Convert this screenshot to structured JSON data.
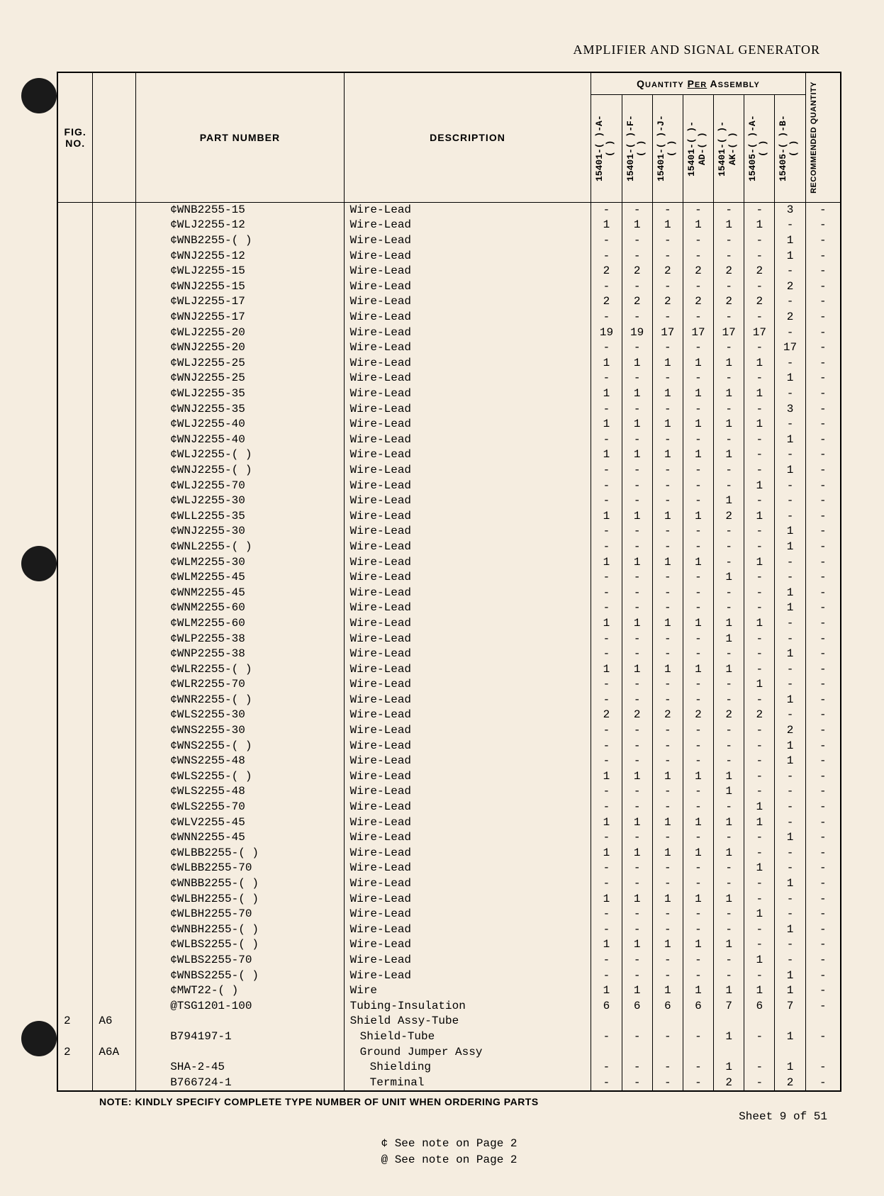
{
  "document_title": "AMPLIFIER AND SIGNAL GENERATOR",
  "headers": {
    "fig_no": "FIG. NO.",
    "part_number": "PART NUMBER",
    "description": "DESCRIPTION",
    "qty_per_assembly": "QUANTITY PER ASSEMBLY",
    "recommended_qty": "RECOMMENDED QUANTITY"
  },
  "qty_columns": [
    "15401-( )-A-( )",
    "15401-( )-F-( )",
    "15401-( )-J-( )",
    "15401-( )-AD-( )",
    "15401-( )-AK-( )",
    "15405-( )-A-( )",
    "15405-( )-B-( )"
  ],
  "rows": [
    {
      "fig": "",
      "ref": "",
      "part": "¢WNB2255-15",
      "desc": "Wire-Lead",
      "q": [
        "-",
        "-",
        "-",
        "-",
        "-",
        "-",
        "3"
      ],
      "rec": "-",
      "indent": 0
    },
    {
      "fig": "",
      "ref": "",
      "part": "¢WLJ2255-12",
      "desc": "Wire-Lead",
      "q": [
        "1",
        "1",
        "1",
        "1",
        "1",
        "1",
        "-"
      ],
      "rec": "-",
      "indent": 0
    },
    {
      "fig": "",
      "ref": "",
      "part": "¢WNB2255-( )",
      "desc": "Wire-Lead",
      "q": [
        "-",
        "-",
        "-",
        "-",
        "-",
        "-",
        "1"
      ],
      "rec": "-",
      "indent": 0
    },
    {
      "fig": "",
      "ref": "",
      "part": "¢WNJ2255-12",
      "desc": "Wire-Lead",
      "q": [
        "-",
        "-",
        "-",
        "-",
        "-",
        "-",
        "1"
      ],
      "rec": "-",
      "indent": 0
    },
    {
      "fig": "",
      "ref": "",
      "part": "¢WLJ2255-15",
      "desc": "Wire-Lead",
      "q": [
        "2",
        "2",
        "2",
        "2",
        "2",
        "2",
        "-"
      ],
      "rec": "-",
      "indent": 0
    },
    {
      "fig": "",
      "ref": "",
      "part": "¢WNJ2255-15",
      "desc": "Wire-Lead",
      "q": [
        "-",
        "-",
        "-",
        "-",
        "-",
        "-",
        "2"
      ],
      "rec": "-",
      "indent": 0
    },
    {
      "fig": "",
      "ref": "",
      "part": "¢WLJ2255-17",
      "desc": "Wire-Lead",
      "q": [
        "2",
        "2",
        "2",
        "2",
        "2",
        "2",
        "-"
      ],
      "rec": "-",
      "indent": 0
    },
    {
      "fig": "",
      "ref": "",
      "part": "¢WNJ2255-17",
      "desc": "Wire-Lead",
      "q": [
        "-",
        "-",
        "-",
        "-",
        "-",
        "-",
        "2"
      ],
      "rec": "-",
      "indent": 0
    },
    {
      "fig": "",
      "ref": "",
      "part": "¢WLJ2255-20",
      "desc": "Wire-Lead",
      "q": [
        "19",
        "19",
        "17",
        "17",
        "17",
        "17",
        "-"
      ],
      "rec": "-",
      "indent": 0
    },
    {
      "fig": "",
      "ref": "",
      "part": "¢WNJ2255-20",
      "desc": "Wire-Lead",
      "q": [
        "-",
        "-",
        "-",
        "-",
        "-",
        "-",
        "17"
      ],
      "rec": "-",
      "indent": 0
    },
    {
      "fig": "",
      "ref": "",
      "part": "¢WLJ2255-25",
      "desc": "Wire-Lead",
      "q": [
        "1",
        "1",
        "1",
        "1",
        "1",
        "1",
        "-"
      ],
      "rec": "-",
      "indent": 0
    },
    {
      "fig": "",
      "ref": "",
      "part": "¢WNJ2255-25",
      "desc": "Wire-Lead",
      "q": [
        "-",
        "-",
        "-",
        "-",
        "-",
        "-",
        "1"
      ],
      "rec": "-",
      "indent": 0
    },
    {
      "fig": "",
      "ref": "",
      "part": "¢WLJ2255-35",
      "desc": "Wire-Lead",
      "q": [
        "1",
        "1",
        "1",
        "1",
        "1",
        "1",
        "-"
      ],
      "rec": "-",
      "indent": 0
    },
    {
      "fig": "",
      "ref": "",
      "part": "¢WNJ2255-35",
      "desc": "Wire-Lead",
      "q": [
        "-",
        "-",
        "-",
        "-",
        "-",
        "-",
        "3"
      ],
      "rec": "-",
      "indent": 0
    },
    {
      "fig": "",
      "ref": "",
      "part": "¢WLJ2255-40",
      "desc": "Wire-Lead",
      "q": [
        "1",
        "1",
        "1",
        "1",
        "1",
        "1",
        "-"
      ],
      "rec": "-",
      "indent": 0
    },
    {
      "fig": "",
      "ref": "",
      "part": "¢WNJ2255-40",
      "desc": "Wire-Lead",
      "q": [
        "-",
        "-",
        "-",
        "-",
        "-",
        "-",
        "1"
      ],
      "rec": "-",
      "indent": 0
    },
    {
      "fig": "",
      "ref": "",
      "part": "¢WLJ2255-( )",
      "desc": "Wire-Lead",
      "q": [
        "1",
        "1",
        "1",
        "1",
        "1",
        "-",
        "-"
      ],
      "rec": "-",
      "indent": 0
    },
    {
      "fig": "",
      "ref": "",
      "part": "¢WNJ2255-( )",
      "desc": "Wire-Lead",
      "q": [
        "-",
        "-",
        "-",
        "-",
        "-",
        "-",
        "1"
      ],
      "rec": "-",
      "indent": 0
    },
    {
      "fig": "",
      "ref": "",
      "part": "¢WLJ2255-70",
      "desc": "Wire-Lead",
      "q": [
        "-",
        "-",
        "-",
        "-",
        "-",
        "1",
        "-"
      ],
      "rec": "-",
      "indent": 0
    },
    {
      "fig": "",
      "ref": "",
      "part": "¢WLJ2255-30",
      "desc": "Wire-Lead",
      "q": [
        "-",
        "-",
        "-",
        "-",
        "1",
        "-",
        "-"
      ],
      "rec": "-",
      "indent": 0
    },
    {
      "fig": "",
      "ref": "",
      "part": "¢WLL2255-35",
      "desc": "Wire-Lead",
      "q": [
        "1",
        "1",
        "1",
        "1",
        "2",
        "1",
        "-"
      ],
      "rec": "-",
      "indent": 0
    },
    {
      "fig": "",
      "ref": "",
      "part": "¢WNJ2255-30",
      "desc": "Wire-Lead",
      "q": [
        "-",
        "-",
        "-",
        "-",
        "-",
        "-",
        "1"
      ],
      "rec": "-",
      "indent": 0
    },
    {
      "fig": "",
      "ref": "",
      "part": "¢WNL2255-( )",
      "desc": "Wire-Lead",
      "q": [
        "-",
        "-",
        "-",
        "-",
        "-",
        "-",
        "1"
      ],
      "rec": "-",
      "indent": 0
    },
    {
      "fig": "",
      "ref": "",
      "part": "¢WLM2255-30",
      "desc": "Wire-Lead",
      "q": [
        "1",
        "1",
        "1",
        "1",
        "-",
        "1",
        "-"
      ],
      "rec": "-",
      "indent": 0
    },
    {
      "fig": "",
      "ref": "",
      "part": "¢WLM2255-45",
      "desc": "Wire-Lead",
      "q": [
        "-",
        "-",
        "-",
        "-",
        "1",
        "-",
        "-"
      ],
      "rec": "-",
      "indent": 0
    },
    {
      "fig": "",
      "ref": "",
      "part": "¢WNM2255-45",
      "desc": "Wire-Lead",
      "q": [
        "-",
        "-",
        "-",
        "-",
        "-",
        "-",
        "1"
      ],
      "rec": "-",
      "indent": 0
    },
    {
      "fig": "",
      "ref": "",
      "part": "¢WNM2255-60",
      "desc": "Wire-Lead",
      "q": [
        "-",
        "-",
        "-",
        "-",
        "-",
        "-",
        "1"
      ],
      "rec": "-",
      "indent": 0
    },
    {
      "fig": "",
      "ref": "",
      "part": "¢WLM2255-60",
      "desc": "Wire-Lead",
      "q": [
        "1",
        "1",
        "1",
        "1",
        "1",
        "1",
        "-"
      ],
      "rec": "-",
      "indent": 0
    },
    {
      "fig": "",
      "ref": "",
      "part": "¢WLP2255-38",
      "desc": "Wire-Lead",
      "q": [
        "-",
        "-",
        "-",
        "-",
        "1",
        "-",
        "-"
      ],
      "rec": "-",
      "indent": 0
    },
    {
      "fig": "",
      "ref": "",
      "part": "¢WNP2255-38",
      "desc": "Wire-Lead",
      "q": [
        "-",
        "-",
        "-",
        "-",
        "-",
        "-",
        "1"
      ],
      "rec": "-",
      "indent": 0
    },
    {
      "fig": "",
      "ref": "",
      "part": "¢WLR2255-( )",
      "desc": "Wire-Lead",
      "q": [
        "1",
        "1",
        "1",
        "1",
        "1",
        "-",
        "-"
      ],
      "rec": "-",
      "indent": 0
    },
    {
      "fig": "",
      "ref": "",
      "part": "¢WLR2255-70",
      "desc": "Wire-Lead",
      "q": [
        "-",
        "-",
        "-",
        "-",
        "-",
        "1",
        "-"
      ],
      "rec": "-",
      "indent": 0
    },
    {
      "fig": "",
      "ref": "",
      "part": "¢WNR2255-( )",
      "desc": "Wire-Lead",
      "q": [
        "-",
        "-",
        "-",
        "-",
        "-",
        "-",
        "1"
      ],
      "rec": "-",
      "indent": 0
    },
    {
      "fig": "",
      "ref": "",
      "part": "¢WLS2255-30",
      "desc": "Wire-Lead",
      "q": [
        "2",
        "2",
        "2",
        "2",
        "2",
        "2",
        "-"
      ],
      "rec": "-",
      "indent": 0
    },
    {
      "fig": "",
      "ref": "",
      "part": "¢WNS2255-30",
      "desc": "Wire-Lead",
      "q": [
        "-",
        "-",
        "-",
        "-",
        "-",
        "-",
        "2"
      ],
      "rec": "-",
      "indent": 0
    },
    {
      "fig": "",
      "ref": "",
      "part": "¢WNS2255-( )",
      "desc": "Wire-Lead",
      "q": [
        "-",
        "-",
        "-",
        "-",
        "-",
        "-",
        "1"
      ],
      "rec": "-",
      "indent": 0
    },
    {
      "fig": "",
      "ref": "",
      "part": "¢WNS2255-48",
      "desc": "Wire-Lead",
      "q": [
        "-",
        "-",
        "-",
        "-",
        "-",
        "-",
        "1"
      ],
      "rec": "-",
      "indent": 0
    },
    {
      "fig": "",
      "ref": "",
      "part": "¢WLS2255-( )",
      "desc": "Wire-Lead",
      "q": [
        "1",
        "1",
        "1",
        "1",
        "1",
        "-",
        "-"
      ],
      "rec": "-",
      "indent": 0
    },
    {
      "fig": "",
      "ref": "",
      "part": "¢WLS2255-48",
      "desc": "Wire-Lead",
      "q": [
        "-",
        "-",
        "-",
        "-",
        "1",
        "-",
        "-"
      ],
      "rec": "-",
      "indent": 0
    },
    {
      "fig": "",
      "ref": "",
      "part": "¢WLS2255-70",
      "desc": "Wire-Lead",
      "q": [
        "-",
        "-",
        "-",
        "-",
        "-",
        "1",
        "-"
      ],
      "rec": "-",
      "indent": 0
    },
    {
      "fig": "",
      "ref": "",
      "part": "¢WLV2255-45",
      "desc": "Wire-Lead",
      "q": [
        "1",
        "1",
        "1",
        "1",
        "1",
        "1",
        "-"
      ],
      "rec": "-",
      "indent": 0
    },
    {
      "fig": "",
      "ref": "",
      "part": "¢WNN2255-45",
      "desc": "Wire-Lead",
      "q": [
        "-",
        "-",
        "-",
        "-",
        "-",
        "-",
        "1"
      ],
      "rec": "-",
      "indent": 0
    },
    {
      "fig": "",
      "ref": "",
      "part": "¢WLBB2255-( )",
      "desc": "Wire-Lead",
      "q": [
        "1",
        "1",
        "1",
        "1",
        "1",
        "-",
        "-"
      ],
      "rec": "-",
      "indent": 0
    },
    {
      "fig": "",
      "ref": "",
      "part": "¢WLBB2255-70",
      "desc": "Wire-Lead",
      "q": [
        "-",
        "-",
        "-",
        "-",
        "-",
        "1",
        "-"
      ],
      "rec": "-",
      "indent": 0
    },
    {
      "fig": "",
      "ref": "",
      "part": "¢WNBB2255-( )",
      "desc": "Wire-Lead",
      "q": [
        "-",
        "-",
        "-",
        "-",
        "-",
        "-",
        "1"
      ],
      "rec": "-",
      "indent": 0
    },
    {
      "fig": "",
      "ref": "",
      "part": "¢WLBH2255-( )",
      "desc": "Wire-Lead",
      "q": [
        "1",
        "1",
        "1",
        "1",
        "1",
        "-",
        "-"
      ],
      "rec": "-",
      "indent": 0
    },
    {
      "fig": "",
      "ref": "",
      "part": "¢WLBH2255-70",
      "desc": "Wire-Lead",
      "q": [
        "-",
        "-",
        "-",
        "-",
        "-",
        "1",
        "-"
      ],
      "rec": "-",
      "indent": 0
    },
    {
      "fig": "",
      "ref": "",
      "part": "¢WNBH2255-( )",
      "desc": "Wire-Lead",
      "q": [
        "-",
        "-",
        "-",
        "-",
        "-",
        "-",
        "1"
      ],
      "rec": "-",
      "indent": 0
    },
    {
      "fig": "",
      "ref": "",
      "part": "¢WLBS2255-( )",
      "desc": "Wire-Lead",
      "q": [
        "1",
        "1",
        "1",
        "1",
        "1",
        "-",
        "-"
      ],
      "rec": "-",
      "indent": 0
    },
    {
      "fig": "",
      "ref": "",
      "part": "¢WLBS2255-70",
      "desc": "Wire-Lead",
      "q": [
        "-",
        "-",
        "-",
        "-",
        "-",
        "1",
        "-"
      ],
      "rec": "-",
      "indent": 0
    },
    {
      "fig": "",
      "ref": "",
      "part": "¢WNBS2255-( )",
      "desc": "Wire-Lead",
      "q": [
        "-",
        "-",
        "-",
        "-",
        "-",
        "-",
        "1"
      ],
      "rec": "-",
      "indent": 0
    },
    {
      "fig": "",
      "ref": "",
      "part": "¢MWT22-( )",
      "desc": "Wire",
      "q": [
        "1",
        "1",
        "1",
        "1",
        "1",
        "1",
        "1"
      ],
      "rec": "-",
      "indent": 0
    },
    {
      "fig": "",
      "ref": "",
      "part": "@TSG1201-100",
      "desc": "Tubing-Insulation",
      "q": [
        "6",
        "6",
        "6",
        "6",
        "7",
        "6",
        "7"
      ],
      "rec": "-",
      "indent": 0
    },
    {
      "fig": "2",
      "ref": "A6",
      "part": "",
      "desc": "Shield Assy-Tube",
      "q": [
        "",
        "",
        "",
        "",
        "",
        "",
        ""
      ],
      "rec": "",
      "indent": 0
    },
    {
      "fig": "",
      "ref": "",
      "part": "B794197-1",
      "desc": "Shield-Tube",
      "q": [
        "-",
        "-",
        "-",
        "-",
        "1",
        "-",
        "1"
      ],
      "rec": "-",
      "indent": 1
    },
    {
      "fig": "2",
      "ref": "A6A",
      "part": "",
      "desc": "Ground Jumper Assy",
      "q": [
        "",
        "",
        "",
        "",
        "",
        "",
        ""
      ],
      "rec": "",
      "indent": 1
    },
    {
      "fig": "",
      "ref": "",
      "part": "SHA-2-45",
      "desc": "Shielding",
      "q": [
        "-",
        "-",
        "-",
        "-",
        "1",
        "-",
        "1"
      ],
      "rec": "-",
      "indent": 2
    },
    {
      "fig": "",
      "ref": "",
      "part": "B766724-1",
      "desc": "Terminal",
      "q": [
        "-",
        "-",
        "-",
        "-",
        "2",
        "-",
        "2"
      ],
      "rec": "-",
      "indent": 2
    }
  ],
  "footer_note": "NOTE: KINDLY SPECIFY COMPLETE TYPE NUMBER OF UNIT WHEN ORDERING PARTS",
  "sheet_info": "Sheet 9 of 51",
  "see_note_1": "¢ See note on Page 2",
  "see_note_2": "@ See note on Page 2",
  "colors": {
    "paper": "#f5ede0",
    "ink": "#000000",
    "punch": "#1a1a1a"
  }
}
